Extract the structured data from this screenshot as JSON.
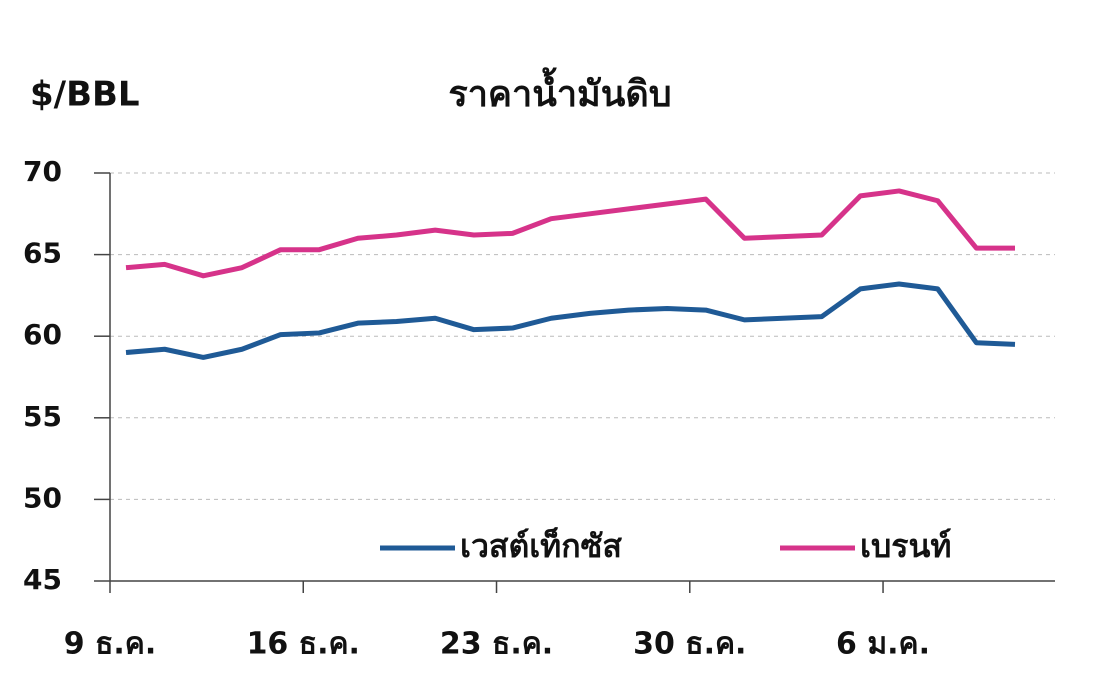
{
  "chart_data": {
    "type": "line",
    "title": "ราคาน้ำมันดิบ",
    "y_label": "$/BBL",
    "categories": [
      "9 ธ.ค.",
      null,
      null,
      null,
      null,
      "16 ธ.ค.",
      null,
      null,
      null,
      null,
      "23 ธ.ค.",
      null,
      null,
      null,
      null,
      "30 ธ.ค.",
      null,
      null,
      null,
      null,
      "6 ม.ค.",
      null,
      null,
      null
    ],
    "series": [
      {
        "name": "เวสต์เท็กซัส",
        "color": "#1f5a96",
        "values": [
          59.0,
          59.2,
          58.7,
          59.2,
          60.1,
          60.2,
          60.8,
          60.9,
          61.1,
          60.4,
          60.5,
          61.1,
          61.4,
          61.6,
          61.7,
          61.6,
          61.0,
          61.1,
          61.2,
          62.9,
          63.2,
          62.9,
          59.6,
          59.5
        ]
      },
      {
        "name": "เบรนท์",
        "color": "#d6338a",
        "values": [
          64.2,
          64.4,
          63.7,
          64.2,
          65.3,
          65.3,
          66.0,
          66.2,
          66.5,
          66.2,
          66.3,
          67.2,
          67.5,
          67.8,
          68.1,
          68.4,
          66.0,
          66.1,
          66.2,
          68.6,
          68.9,
          68.3,
          65.4,
          65.4
        ]
      }
    ],
    "ylim": [
      45,
      70
    ],
    "yticks": [
      45,
      50,
      55,
      60,
      65,
      70
    ],
    "grid": true,
    "legend": "bottom-right"
  }
}
